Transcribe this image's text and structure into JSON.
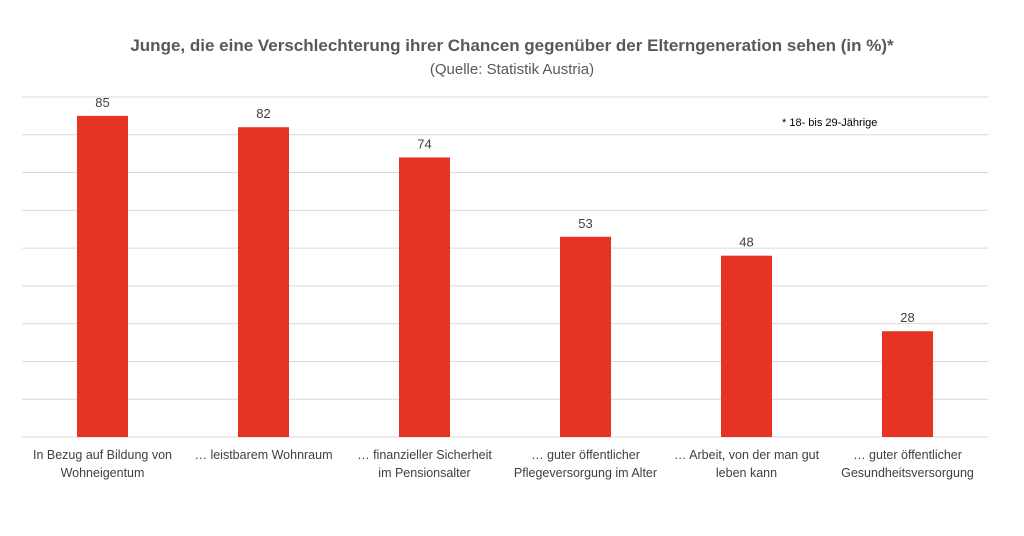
{
  "chart_data": {
    "type": "bar",
    "title": "Junge, die eine Verschlechterung ihrer Chancen gegenüber der Elterngeneration sehen (in %)*",
    "subtitle": "(Quelle: Statistik Austria)",
    "annotation": "* 18- bis 29-Jährige",
    "categories": [
      [
        "In Bezug auf Bildung von",
        "Wohneigentum"
      ],
      [
        "… leistbarem Wohnraum"
      ],
      [
        "… finanzieller Sicherheit",
        "im Pensionsalter"
      ],
      [
        "… guter öffentlicher",
        "Pflegeversorgung im Alter"
      ],
      [
        "… Arbeit, von der man gut",
        "leben kann"
      ],
      [
        "… guter öffentlicher",
        "Gesundheitsversorgung"
      ]
    ],
    "values": [
      85,
      82,
      74,
      53,
      48,
      28
    ],
    "data_labels": [
      "85",
      "82",
      "74",
      "53",
      "48",
      "28"
    ],
    "ylim": [
      0,
      90
    ],
    "grid": true,
    "bar_color": "#e63323",
    "grid_color": "#d9d9d9"
  }
}
